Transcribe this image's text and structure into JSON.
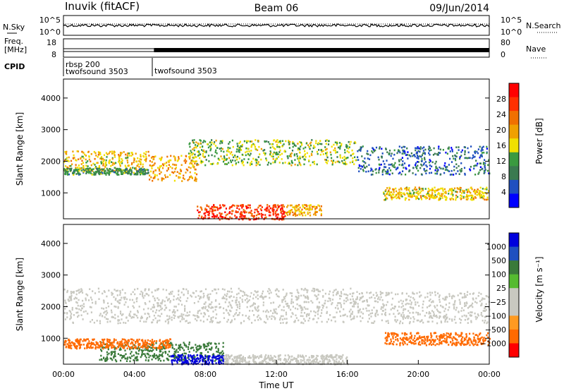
{
  "header": {
    "station": "Inuvik (fitACF)",
    "beam": "Beam 06",
    "date": "09/Jun/2014"
  },
  "strips": {
    "nsky_label": "N.Sky",
    "nsky_ticks": [
      "10^5",
      "10^0"
    ],
    "nsearch_label": "N.Search",
    "nsearch_ticks": [
      "10^5",
      "10^0"
    ],
    "freq_label_1": "Freq.",
    "freq_label_2": "[MHz]",
    "freq_ticks": [
      "18",
      "8"
    ],
    "nave_label": "Nave",
    "nave_ticks": [
      "80",
      "0"
    ],
    "cpid_label": "CPID",
    "cpid_segments": [
      {
        "line1": "rbsp 200",
        "line2": "twofsound 3503"
      },
      {
        "line1": "twofsound 3503",
        "line2": ""
      }
    ]
  },
  "colors": {
    "power_scale": [
      "#0000ff",
      "#2050c0",
      "#3a7a50",
      "#3a9a40",
      "#f0e000",
      "#f0a000",
      "#f07000",
      "#ff3000",
      "#ff0000"
    ],
    "velocity_scale": [
      "#0000dd",
      "#2050c0",
      "#3a7a3a",
      "#55bb30",
      "#c8c8c0",
      "#c8c8c0",
      "#ff9a20",
      "#ff6a00",
      "#ff0000"
    ]
  },
  "chart_data": [
    {
      "type": "heatmap",
      "panel": "power",
      "xlabel": "",
      "ylabel": "Slant Range [km]",
      "x_range_hours": [
        0,
        24
      ],
      "ylim": [
        180,
        4600
      ],
      "yticks": [
        "1000",
        "2000",
        "3000",
        "4000"
      ],
      "colorbar_label": "Power [dB]",
      "colorbar_ticks": [
        "4",
        "8",
        "12",
        "16",
        "20",
        "24",
        "28"
      ],
      "colorbar_range": [
        0,
        32
      ],
      "echo_bands": [
        {
          "t0": 0.0,
          "t1": 4.8,
          "r0": 1700,
          "r1": 2350,
          "value": 20
        },
        {
          "t0": 0.0,
          "t1": 4.8,
          "r0": 1600,
          "r1": 1800,
          "value": 12
        },
        {
          "t0": 4.8,
          "t1": 7.5,
          "r0": 1400,
          "r1": 2200,
          "value": 22
        },
        {
          "t0": 7.5,
          "t1": 12.5,
          "r0": 180,
          "r1": 650,
          "value": 30
        },
        {
          "t0": 12.5,
          "t1": 14.5,
          "r0": 300,
          "r1": 650,
          "value": 22
        },
        {
          "t0": 7.0,
          "t1": 16.5,
          "r0": 1900,
          "r1": 2700,
          "value": 16
        },
        {
          "t0": 16.5,
          "t1": 24.0,
          "r0": 1600,
          "r1": 2500,
          "value": 8
        },
        {
          "t0": 18.0,
          "t1": 24.0,
          "r0": 800,
          "r1": 1200,
          "value": 20
        }
      ]
    },
    {
      "type": "heatmap",
      "panel": "velocity",
      "xlabel": "Time UT",
      "ylabel": "Slant Range [km]",
      "x_range_hours": [
        0,
        24
      ],
      "ylim": [
        180,
        4600
      ],
      "yticks": [
        "1000",
        "2000",
        "3000",
        "4000"
      ],
      "xticks": [
        "00:00",
        "04:00",
        "08:00",
        "12:00",
        "16:00",
        "20:00",
        "00:00"
      ],
      "colorbar_label": "Velocity [m s⁻¹]",
      "colorbar_ticks": [
        "1000",
        "500",
        "100",
        "25",
        "−25",
        "−100",
        "−500",
        "−1000"
      ],
      "echo_bands": [
        {
          "t0": 0.0,
          "t1": 16.5,
          "r0": 1500,
          "r1": 2600,
          "value": 0
        },
        {
          "t0": 16.5,
          "t1": 24.0,
          "r0": 1500,
          "r1": 2500,
          "value": 0
        },
        {
          "t0": 2.0,
          "t1": 9.0,
          "r0": 300,
          "r1": 900,
          "value": 200
        },
        {
          "t0": 6.0,
          "t1": 9.0,
          "r0": 200,
          "r1": 500,
          "value": 1000
        },
        {
          "t0": 9.0,
          "t1": 16.0,
          "r0": 200,
          "r1": 500,
          "value": 0
        },
        {
          "t0": 18.0,
          "t1": 24.0,
          "r0": 800,
          "r1": 1200,
          "value": -200
        },
        {
          "t0": 0.0,
          "t1": 6.0,
          "r0": 700,
          "r1": 1000,
          "value": -150
        }
      ]
    }
  ]
}
